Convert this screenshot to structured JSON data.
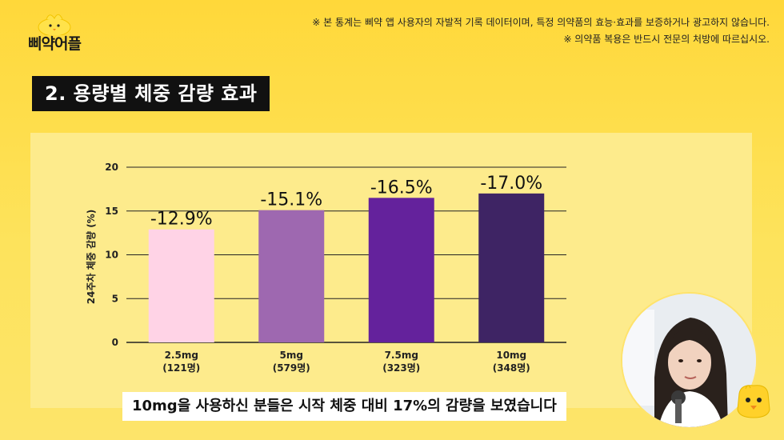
{
  "brand": {
    "logo_text": "삐약어플",
    "logo_icon": "chick-icon"
  },
  "disclaimer": {
    "line1": "※ 본 통계는 삐약 앱 사용자의 자발적 기록 데이터이며, 특정 의약품의 효능·효과를 보증하거나 광고하지 않습니다.",
    "line2": "※ 의약품 복용은 반드시 전문의 처방에 따르십시오."
  },
  "title": "2. 용량별 체중 감량 효과",
  "chart_data": {
    "type": "bar",
    "categories": [
      "2.5mg",
      "5mg",
      "7.5mg",
      "10mg"
    ],
    "category_sublabels": [
      "(121명)",
      "(579명)",
      "(323명)",
      "(348명)"
    ],
    "values": [
      12.9,
      15.1,
      16.5,
      17.0
    ],
    "data_labels": [
      "-12.9%",
      "-15.1%",
      "-16.5%",
      "-17.0%"
    ],
    "colors": [
      "#ffd3e6",
      "#9e68b0",
      "#64229c",
      "#3e2464"
    ],
    "title": "",
    "xlabel": "",
    "ylabel": "24주차 체중 감량 (%)",
    "ylim": [
      0,
      20
    ],
    "yticks": [
      0,
      5,
      10,
      15,
      20
    ],
    "grid": true,
    "legend": "none"
  },
  "caption": "10mg을 사용하신 분들은 시작 체중 대비 17%의 감량을 보였습니다",
  "presenter": {
    "icon": "presenter-avatar-icon"
  },
  "corner_icon": "chick-face-icon"
}
